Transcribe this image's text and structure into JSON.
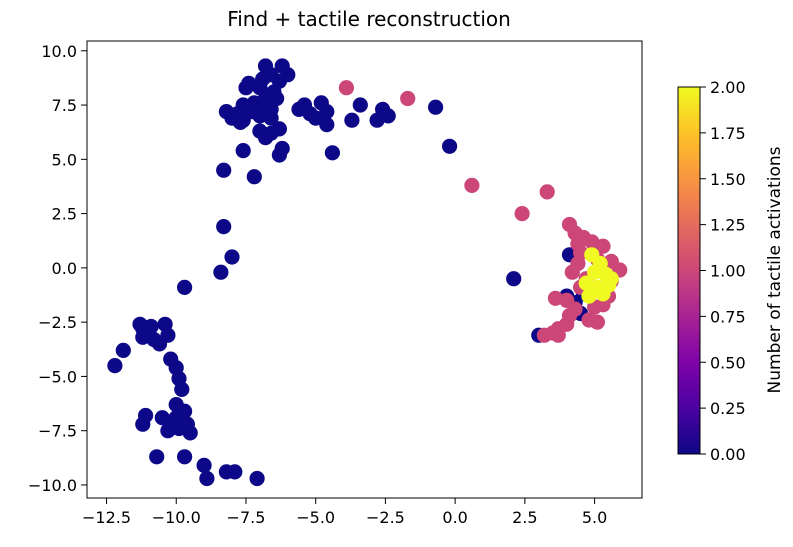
{
  "chart_data": {
    "type": "scatter",
    "title": "Find + tactile reconstruction",
    "xlabel": "",
    "ylabel": "",
    "xlim": [
      -13.2,
      6.7
    ],
    "ylim": [
      -10.6,
      10.45
    ],
    "x_ticks": [
      -12.5,
      -10.0,
      -7.5,
      -5.0,
      -2.5,
      0.0,
      2.5,
      5.0
    ],
    "x_tick_labels": [
      "−12.5",
      "−10.0",
      "−7.5",
      "−5.0",
      "−2.5",
      "0.0",
      "2.5",
      "5.0"
    ],
    "y_ticks": [
      10.0,
      7.5,
      5.0,
      2.5,
      0.0,
      -2.5,
      -5.0,
      -7.5,
      -10.0
    ],
    "y_tick_labels": [
      "10.0",
      "7.5",
      "5.0",
      "2.5",
      "0.0",
      "−2.5",
      "−5.0",
      "−7.5",
      "−10.0"
    ],
    "grid": false,
    "colorbar": {
      "label": "Number of tactile activations",
      "colormap": "plasma",
      "range": [
        0.0,
        2.0
      ],
      "ticks": [
        0.0,
        0.25,
        0.5,
        0.75,
        1.0,
        1.25,
        1.5,
        1.75,
        2.0
      ],
      "tick_labels": [
        "0.00",
        "0.25",
        "0.50",
        "0.75",
        "1.00",
        "1.25",
        "1.50",
        "1.75",
        "2.00"
      ]
    },
    "colors": {
      "0": "#0d0887",
      "1": "#cc4778",
      "2": "#f0f921"
    },
    "points": [
      {
        "x": -6.8,
        "y": 9.3,
        "c": 0
      },
      {
        "x": -6.2,
        "y": 9.3,
        "c": 0
      },
      {
        "x": -6.6,
        "y": 8.9,
        "c": 0
      },
      {
        "x": -6.9,
        "y": 8.7,
        "c": 0
      },
      {
        "x": -6.0,
        "y": 8.9,
        "c": 0
      },
      {
        "x": -6.3,
        "y": 8.6,
        "c": 0
      },
      {
        "x": -7.5,
        "y": 8.3,
        "c": 0
      },
      {
        "x": -7.4,
        "y": 8.5,
        "c": 0
      },
      {
        "x": -7.0,
        "y": 8.3,
        "c": 0
      },
      {
        "x": -6.5,
        "y": 8.1,
        "c": 0
      },
      {
        "x": -6.8,
        "y": 7.8,
        "c": 0
      },
      {
        "x": -7.2,
        "y": 7.6,
        "c": 0
      },
      {
        "x": -6.9,
        "y": 7.4,
        "c": 0
      },
      {
        "x": -7.6,
        "y": 7.5,
        "c": 0
      },
      {
        "x": -7.8,
        "y": 7.1,
        "c": 0
      },
      {
        "x": -7.3,
        "y": 7.2,
        "c": 0
      },
      {
        "x": -6.6,
        "y": 7.3,
        "c": 0
      },
      {
        "x": -6.4,
        "y": 7.8,
        "c": 0
      },
      {
        "x": -7.6,
        "y": 6.8,
        "c": 0
      },
      {
        "x": -7.0,
        "y": 7.0,
        "c": 0
      },
      {
        "x": -6.6,
        "y": 6.9,
        "c": 0
      },
      {
        "x": -8.2,
        "y": 7.2,
        "c": 0
      },
      {
        "x": -8.0,
        "y": 6.9,
        "c": 0
      },
      {
        "x": -7.7,
        "y": 6.7,
        "c": 0
      },
      {
        "x": -7.0,
        "y": 6.3,
        "c": 0
      },
      {
        "x": -6.6,
        "y": 6.2,
        "c": 0
      },
      {
        "x": -6.8,
        "y": 6.0,
        "c": 0
      },
      {
        "x": -6.3,
        "y": 6.4,
        "c": 0
      },
      {
        "x": -6.2,
        "y": 5.5,
        "c": 0
      },
      {
        "x": -6.3,
        "y": 5.2,
        "c": 0
      },
      {
        "x": -5.4,
        "y": 7.5,
        "c": 0
      },
      {
        "x": -5.6,
        "y": 7.3,
        "c": 0
      },
      {
        "x": -5.2,
        "y": 7.1,
        "c": 0
      },
      {
        "x": -4.8,
        "y": 7.6,
        "c": 0
      },
      {
        "x": -4.6,
        "y": 7.2,
        "c": 0
      },
      {
        "x": -5.0,
        "y": 6.9,
        "c": 0
      },
      {
        "x": -4.6,
        "y": 6.6,
        "c": 0
      },
      {
        "x": -3.4,
        "y": 7.5,
        "c": 0
      },
      {
        "x": -3.7,
        "y": 6.8,
        "c": 0
      },
      {
        "x": -2.6,
        "y": 7.3,
        "c": 0
      },
      {
        "x": -2.8,
        "y": 6.8,
        "c": 0
      },
      {
        "x": -2.4,
        "y": 7.0,
        "c": 0
      },
      {
        "x": -4.4,
        "y": 5.3,
        "c": 0
      },
      {
        "x": -7.6,
        "y": 5.4,
        "c": 0
      },
      {
        "x": -8.3,
        "y": 4.5,
        "c": 0
      },
      {
        "x": -7.2,
        "y": 4.2,
        "c": 0
      },
      {
        "x": -0.7,
        "y": 7.4,
        "c": 0
      },
      {
        "x": -0.2,
        "y": 5.6,
        "c": 0
      },
      {
        "x": -3.9,
        "y": 8.3,
        "c": 1
      },
      {
        "x": -1.7,
        "y": 7.8,
        "c": 1
      },
      {
        "x": 0.6,
        "y": 3.8,
        "c": 1
      },
      {
        "x": 2.4,
        "y": 2.5,
        "c": 1
      },
      {
        "x": 3.3,
        "y": 3.5,
        "c": 1
      },
      {
        "x": -8.3,
        "y": 1.9,
        "c": 0
      },
      {
        "x": -8.0,
        "y": 0.5,
        "c": 0
      },
      {
        "x": -8.4,
        "y": -0.2,
        "c": 0
      },
      {
        "x": -9.7,
        "y": -0.9,
        "c": 0
      },
      {
        "x": -12.2,
        "y": -4.5,
        "c": 0
      },
      {
        "x": -11.9,
        "y": -3.8,
        "c": 0
      },
      {
        "x": -11.3,
        "y": -2.6,
        "c": 0
      },
      {
        "x": -11.2,
        "y": -2.8,
        "c": 0
      },
      {
        "x": -11.0,
        "y": -3.0,
        "c": 0
      },
      {
        "x": -10.8,
        "y": -3.3,
        "c": 0
      },
      {
        "x": -11.2,
        "y": -3.2,
        "c": 0
      },
      {
        "x": -10.9,
        "y": -2.7,
        "c": 0
      },
      {
        "x": -10.4,
        "y": -2.6,
        "c": 0
      },
      {
        "x": -10.3,
        "y": -3.1,
        "c": 0
      },
      {
        "x": -10.6,
        "y": -3.5,
        "c": 0
      },
      {
        "x": -10.2,
        "y": -4.2,
        "c": 0
      },
      {
        "x": -10.0,
        "y": -4.6,
        "c": 0
      },
      {
        "x": -9.9,
        "y": -5.1,
        "c": 0
      },
      {
        "x": -9.8,
        "y": -5.6,
        "c": 0
      },
      {
        "x": -10.0,
        "y": -6.3,
        "c": 0
      },
      {
        "x": -9.7,
        "y": -6.6,
        "c": 0
      },
      {
        "x": -9.8,
        "y": -6.9,
        "c": 0
      },
      {
        "x": -11.1,
        "y": -6.8,
        "c": 0
      },
      {
        "x": -11.2,
        "y": -7.2,
        "c": 0
      },
      {
        "x": -10.5,
        "y": -6.9,
        "c": 0
      },
      {
        "x": -10.2,
        "y": -7.1,
        "c": 0
      },
      {
        "x": -10.0,
        "y": -6.9,
        "c": 0
      },
      {
        "x": -10.3,
        "y": -7.5,
        "c": 0
      },
      {
        "x": -9.9,
        "y": -7.4,
        "c": 0
      },
      {
        "x": -9.6,
        "y": -7.2,
        "c": 0
      },
      {
        "x": -9.5,
        "y": -7.6,
        "c": 0
      },
      {
        "x": -10.7,
        "y": -8.7,
        "c": 0
      },
      {
        "x": -9.7,
        "y": -8.7,
        "c": 0
      },
      {
        "x": -9.0,
        "y": -9.1,
        "c": 0
      },
      {
        "x": -8.9,
        "y": -9.7,
        "c": 0
      },
      {
        "x": -8.2,
        "y": -9.4,
        "c": 0
      },
      {
        "x": -7.9,
        "y": -9.4,
        "c": 0
      },
      {
        "x": -7.1,
        "y": -9.7,
        "c": 0
      },
      {
        "x": 2.1,
        "y": -0.5,
        "c": 0
      },
      {
        "x": 3.0,
        "y": -3.1,
        "c": 0
      },
      {
        "x": 4.3,
        "y": 0.6,
        "c": 0
      },
      {
        "x": 4.1,
        "y": 2.0,
        "c": 1
      },
      {
        "x": 4.3,
        "y": 1.6,
        "c": 1
      },
      {
        "x": 4.6,
        "y": 1.4,
        "c": 1
      },
      {
        "x": 4.4,
        "y": 1.1,
        "c": 1
      },
      {
        "x": 4.9,
        "y": 1.2,
        "c": 1
      },
      {
        "x": 5.3,
        "y": 1.0,
        "c": 1
      },
      {
        "x": 4.5,
        "y": 0.7,
        "c": 1
      },
      {
        "x": 5.1,
        "y": 0.4,
        "c": 1
      },
      {
        "x": 5.6,
        "y": 0.3,
        "c": 1
      },
      {
        "x": 4.4,
        "y": 0.2,
        "c": 1
      },
      {
        "x": 4.2,
        "y": -0.2,
        "c": 1
      },
      {
        "x": 4.7,
        "y": -0.5,
        "c": 1
      },
      {
        "x": 5.9,
        "y": -0.1,
        "c": 1
      },
      {
        "x": 5.6,
        "y": -0.6,
        "c": 1
      },
      {
        "x": 4.5,
        "y": -0.9,
        "c": 1
      },
      {
        "x": 4.0,
        "y": -1.5,
        "c": 1
      },
      {
        "x": 3.6,
        "y": -1.4,
        "c": 1
      },
      {
        "x": 4.3,
        "y": -1.9,
        "c": 1
      },
      {
        "x": 5.0,
        "y": -1.8,
        "c": 1
      },
      {
        "x": 5.3,
        "y": -1.7,
        "c": 1
      },
      {
        "x": 5.5,
        "y": -1.3,
        "c": 1
      },
      {
        "x": 4.8,
        "y": -2.4,
        "c": 1
      },
      {
        "x": 4.0,
        "y": -2.6,
        "c": 1
      },
      {
        "x": 3.7,
        "y": -2.8,
        "c": 1
      },
      {
        "x": 3.5,
        "y": -3.0,
        "c": 1
      },
      {
        "x": 3.2,
        "y": -3.1,
        "c": 1
      },
      {
        "x": 3.7,
        "y": -3.1,
        "c": 1
      },
      {
        "x": 4.1,
        "y": -2.2,
        "c": 1
      },
      {
        "x": 5.1,
        "y": -2.5,
        "c": 1
      },
      {
        "x": 4.1,
        "y": 0.6,
        "c": 0
      },
      {
        "x": 4.6,
        "y": -1.2,
        "c": 0
      },
      {
        "x": 4.3,
        "y": -1.6,
        "c": 0
      },
      {
        "x": 4.5,
        "y": -2.1,
        "c": 0
      },
      {
        "x": 4.0,
        "y": -1.3,
        "c": 0
      },
      {
        "x": 4.9,
        "y": 0.6,
        "c": 2
      },
      {
        "x": 5.2,
        "y": 0.2,
        "c": 2
      },
      {
        "x": 5.0,
        "y": -0.2,
        "c": 2
      },
      {
        "x": 5.4,
        "y": -0.3,
        "c": 2
      },
      {
        "x": 4.7,
        "y": -0.7,
        "c": 2
      },
      {
        "x": 5.1,
        "y": -0.9,
        "c": 2
      },
      {
        "x": 5.5,
        "y": -0.8,
        "c": 2
      },
      {
        "x": 4.8,
        "y": -1.3,
        "c": 2
      },
      {
        "x": 5.3,
        "y": -1.2,
        "c": 2
      },
      {
        "x": 5.6,
        "y": -0.5,
        "c": 2
      }
    ]
  }
}
